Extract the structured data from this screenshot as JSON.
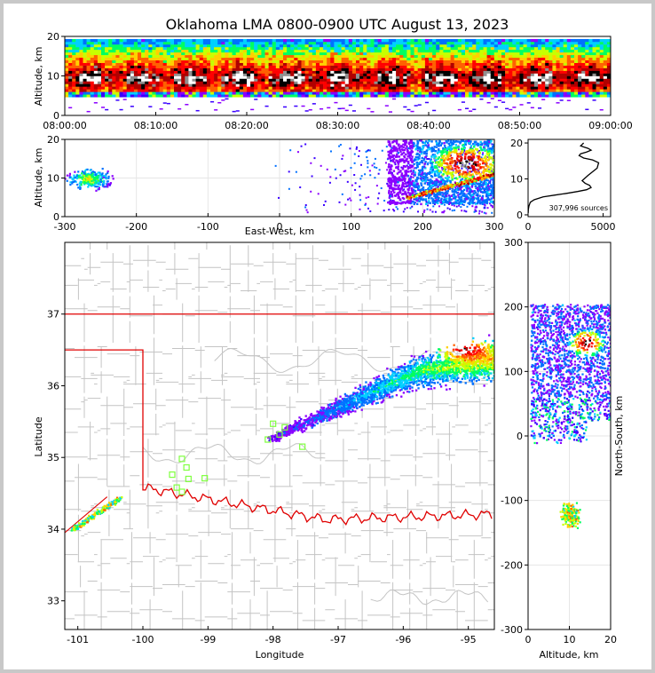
{
  "chart_data": [
    {
      "panel": "altitude-time",
      "type": "heatmap",
      "title": "Oklahoma LMA 0800-0900 UTC August 13, 2023",
      "ylabel": "Altitude, km",
      "xlabel": "",
      "x_ticks": [
        "08:00:00",
        "08:10:00",
        "08:20:00",
        "08:30:00",
        "08:40:00",
        "08:50:00",
        "09:00:00"
      ],
      "xlim": [
        0,
        60
      ],
      "ylim": [
        0,
        20
      ],
      "y_ticks": [
        0,
        10,
        20
      ],
      "source_layer_altitude_km": [
        5,
        19
      ]
    },
    {
      "panel": "east-west-altitude",
      "type": "heatmap",
      "xlabel": "East-West, km",
      "ylabel": "Altitude, km",
      "xlim": [
        -300,
        300
      ],
      "ylim": [
        0,
        20
      ],
      "x_ticks": [
        -300,
        -200,
        -100,
        0,
        100,
        200,
        300
      ],
      "y_ticks": [
        0,
        10,
        20
      ]
    },
    {
      "panel": "altitude-histogram",
      "type": "line",
      "annotation": "307,996 sources",
      "xlim": [
        0,
        5500
      ],
      "ylim": [
        -0.5,
        21
      ],
      "x_ticks": [
        0,
        5000
      ],
      "y_ticks": [
        0,
        10,
        20
      ],
      "x": [
        5,
        20,
        60,
        150,
        400,
        1000,
        1800,
        2600,
        3300,
        3900,
        4200,
        4100,
        3800,
        3600,
        4000,
        4600,
        4700,
        4300,
        3700,
        3400,
        3500,
        3900,
        4200,
        4000,
        3700,
        3500,
        3600,
        3700
      ],
      "y": [
        0.5,
        1.5,
        2.5,
        3.5,
        4.2,
        5.0,
        5.5,
        6.0,
        6.5,
        7.0,
        7.6,
        8.2,
        8.8,
        9.5,
        11.0,
        13.0,
        14.5,
        15.3,
        15.8,
        16.5,
        17.0,
        17.5,
        18.0,
        18.5,
        18.9,
        19.2,
        19.6,
        20.0
      ]
    },
    {
      "panel": "plan-view-map",
      "type": "scatter",
      "xlabel": "Longitude",
      "ylabel": "Latitude",
      "xlim": [
        -101.2,
        -94.6
      ],
      "ylim": [
        32.6,
        38.0
      ],
      "x_ticks": [
        -101,
        -100,
        -99,
        -98,
        -97,
        -96,
        -95
      ],
      "y_ticks": [
        33,
        34,
        35,
        36,
        37
      ],
      "stations": [
        [
          -98.0,
          35.47
        ],
        [
          -97.82,
          35.42
        ],
        [
          -98.08,
          35.25
        ],
        [
          -97.9,
          35.32
        ],
        [
          -97.55,
          35.15
        ],
        [
          -99.4,
          34.98
        ],
        [
          -99.33,
          34.86
        ],
        [
          -99.55,
          34.76
        ],
        [
          -99.3,
          34.7
        ],
        [
          -99.05,
          34.71
        ],
        [
          -99.48,
          34.58
        ],
        [
          -99.4,
          34.52
        ]
      ]
    },
    {
      "panel": "altitude-north-south",
      "type": "heatmap",
      "xlabel": "Altitude, km",
      "ylabel": "North-South, km",
      "xlim": [
        0,
        20
      ],
      "ylim": [
        -300,
        300
      ],
      "x_ticks": [
        0,
        10,
        20
      ],
      "y_ticks": [
        -300,
        -200,
        -100,
        0,
        100,
        200,
        300
      ]
    }
  ]
}
